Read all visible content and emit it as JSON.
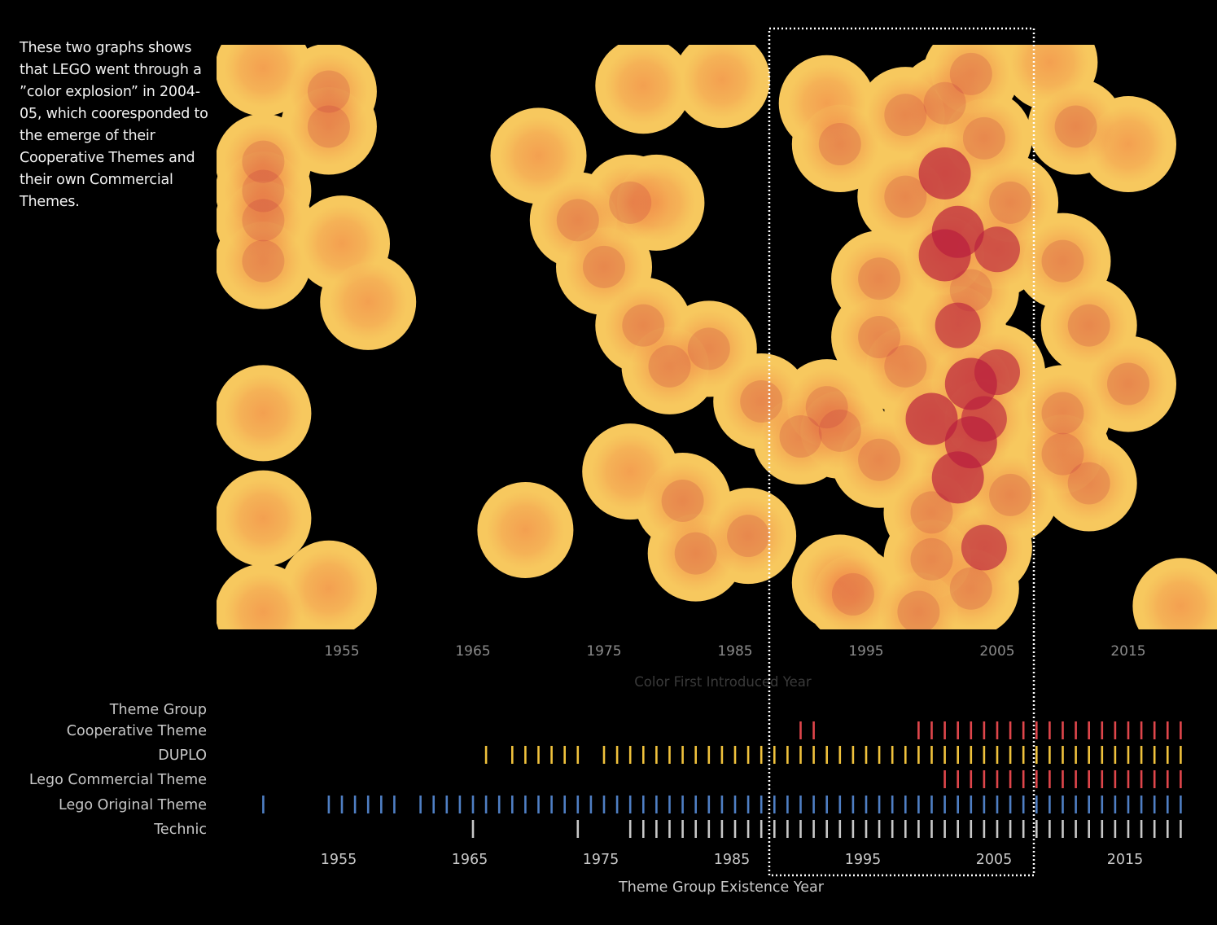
{
  "annotation": {
    "text": "These two graphs shows that LEGO went through a ”color explosion” in 2004-05, which cooresponded to the emerge of their Cooperative Themes and their own Commercial Themes."
  },
  "colors": {
    "background": "#000000",
    "heat_low": "#f7c85e",
    "heat_mid": "#f07f45",
    "heat_high": "#b81c3d",
    "cooperative": "#e0464b",
    "duplo": "#f0c23c",
    "commercial": "#e0464b",
    "original": "#4f7fc4",
    "technic": "#c8c8c8",
    "highlight_box": "#ffffff",
    "axis_text": "#8a8a8a",
    "label_text": "#c8c8c8"
  },
  "chart_data": [
    {
      "type": "heatmap",
      "xlabel": "Color First Introduced Year",
      "ylabel": "",
      "xlim": [
        1945.5,
        2022
      ],
      "ylim": [
        0,
        100
      ],
      "ticks": [
        1955,
        1965,
        1975,
        1985,
        1995,
        2005,
        2015
      ],
      "points": [
        {
          "x": 1949,
          "y": 96
        },
        {
          "x": 1954,
          "y": 92
        },
        {
          "x": 1954,
          "y": 86
        },
        {
          "x": 1949,
          "y": 80
        },
        {
          "x": 1949,
          "y": 75
        },
        {
          "x": 1949,
          "y": 70
        },
        {
          "x": 1949,
          "y": 63
        },
        {
          "x": 1955,
          "y": 66
        },
        {
          "x": 1957,
          "y": 56
        },
        {
          "x": 1949,
          "y": 37
        },
        {
          "x": 1949,
          "y": 19
        },
        {
          "x": 1954,
          "y": 7
        },
        {
          "x": 1949,
          "y": 3
        },
        {
          "x": 1970,
          "y": 81
        },
        {
          "x": 1969,
          "y": 17
        },
        {
          "x": 1978,
          "y": 93
        },
        {
          "x": 1984,
          "y": 94
        },
        {
          "x": 1977,
          "y": 73
        },
        {
          "x": 1973,
          "y": 70
        },
        {
          "x": 1979,
          "y": 73
        },
        {
          "x": 1975,
          "y": 62
        },
        {
          "x": 1978,
          "y": 52
        },
        {
          "x": 1983,
          "y": 48
        },
        {
          "x": 1980,
          "y": 45
        },
        {
          "x": 1977,
          "y": 27
        },
        {
          "x": 1981,
          "y": 22
        },
        {
          "x": 1982,
          "y": 13
        },
        {
          "x": 1987,
          "y": 39
        },
        {
          "x": 1986,
          "y": 16
        },
        {
          "x": 1990,
          "y": 33
        },
        {
          "x": 1992,
          "y": 90
        },
        {
          "x": 1993,
          "y": 83
        },
        {
          "x": 1992,
          "y": 38
        },
        {
          "x": 1993,
          "y": 34
        },
        {
          "x": 1996,
          "y": 60
        },
        {
          "x": 1993,
          "y": 8
        },
        {
          "x": 1994,
          "y": 6
        },
        {
          "x": 1996,
          "y": 29
        },
        {
          "x": 1996,
          "y": 50
        },
        {
          "x": 1998,
          "y": 45
        },
        {
          "x": 2001,
          "y": 90
        },
        {
          "x": 2001,
          "y": 78
        },
        {
          "x": 2002,
          "y": 68
        },
        {
          "x": 2003,
          "y": 58
        },
        {
          "x": 2002,
          "y": 52
        },
        {
          "x": 2003,
          "y": 32
        },
        {
          "x": 2002,
          "y": 26
        },
        {
          "x": 2000,
          "y": 36
        },
        {
          "x": 2000,
          "y": 20
        },
        {
          "x": 2004,
          "y": 14
        },
        {
          "x": 2003,
          "y": 7
        },
        {
          "x": 2000,
          "y": 12
        },
        {
          "x": 1999,
          "y": 3
        },
        {
          "x": 2005,
          "y": 65
        },
        {
          "x": 2006,
          "y": 23
        },
        {
          "x": 2003,
          "y": 95
        },
        {
          "x": 2004,
          "y": 84
        },
        {
          "x": 2005,
          "y": 44
        },
        {
          "x": 2003,
          "y": 42
        },
        {
          "x": 2001,
          "y": 64
        },
        {
          "x": 1998,
          "y": 74
        },
        {
          "x": 1998,
          "y": 88
        },
        {
          "x": 2006,
          "y": 73
        },
        {
          "x": 2004,
          "y": 36
        },
        {
          "x": 2009,
          "y": 97
        },
        {
          "x": 2011,
          "y": 86
        },
        {
          "x": 2015,
          "y": 83
        },
        {
          "x": 2010,
          "y": 63
        },
        {
          "x": 2012,
          "y": 52
        },
        {
          "x": 2015,
          "y": 42
        },
        {
          "x": 2010,
          "y": 37
        },
        {
          "x": 2012,
          "y": 25
        },
        {
          "x": 2010,
          "y": 30
        },
        {
          "x": 2019,
          "y": 4
        }
      ]
    },
    {
      "type": "strip",
      "title": "Theme Group",
      "xlabel": "Theme Group Existence Year",
      "xlim": [
        1945.5,
        2022
      ],
      "ticks": [
        1955,
        1965,
        1975,
        1985,
        1995,
        2005,
        2015
      ],
      "series": [
        {
          "name": "Cooperative Theme",
          "years": [
            1990,
            1991,
            1999,
            2000,
            2001,
            2002,
            2003,
            2004,
            2005,
            2006,
            2007,
            2008,
            2009,
            2010,
            2011,
            2012,
            2013,
            2014,
            2015,
            2016,
            2017,
            2018,
            2019
          ]
        },
        {
          "name": "DUPLO",
          "years": [
            1966,
            1968,
            1969,
            1970,
            1971,
            1972,
            1973,
            1975,
            1976,
            1977,
            1978,
            1979,
            1980,
            1981,
            1982,
            1983,
            1984,
            1985,
            1986,
            1987,
            1988,
            1989,
            1990,
            1991,
            1992,
            1993,
            1994,
            1995,
            1996,
            1997,
            1998,
            1999,
            2000,
            2001,
            2002,
            2003,
            2004,
            2005,
            2006,
            2007,
            2008,
            2009,
            2010,
            2011,
            2012,
            2013,
            2014,
            2015,
            2016,
            2017,
            2018,
            2019
          ]
        },
        {
          "name": "Lego Commercial Theme",
          "years": [
            2001,
            2002,
            2003,
            2004,
            2005,
            2006,
            2007,
            2008,
            2009,
            2010,
            2011,
            2012,
            2013,
            2014,
            2015,
            2016,
            2017,
            2018,
            2019
          ]
        },
        {
          "name": "Lego Original Theme",
          "years": [
            1949,
            1954,
            1955,
            1956,
            1957,
            1958,
            1959,
            1961,
            1962,
            1963,
            1964,
            1965,
            1966,
            1967,
            1968,
            1969,
            1970,
            1971,
            1972,
            1973,
            1974,
            1975,
            1976,
            1977,
            1978,
            1979,
            1980,
            1981,
            1982,
            1983,
            1984,
            1985,
            1986,
            1987,
            1988,
            1989,
            1990,
            1991,
            1992,
            1993,
            1994,
            1995,
            1996,
            1997,
            1998,
            1999,
            2000,
            2001,
            2002,
            2003,
            2004,
            2005,
            2006,
            2007,
            2008,
            2009,
            2010,
            2011,
            2012,
            2013,
            2014,
            2015,
            2016,
            2017,
            2018,
            2019
          ]
        },
        {
          "name": "Technic",
          "years": [
            1965,
            1973,
            1977,
            1978,
            1979,
            1980,
            1981,
            1982,
            1983,
            1984,
            1985,
            1986,
            1987,
            1988,
            1989,
            1990,
            1991,
            1992,
            1993,
            1994,
            1995,
            1996,
            1997,
            1998,
            1999,
            2000,
            2001,
            2002,
            2003,
            2004,
            2005,
            2006,
            2007,
            2008,
            2009,
            2010,
            2011,
            2012,
            2013,
            2014,
            2015,
            2016,
            2017,
            2018,
            2019
          ]
        }
      ]
    }
  ]
}
